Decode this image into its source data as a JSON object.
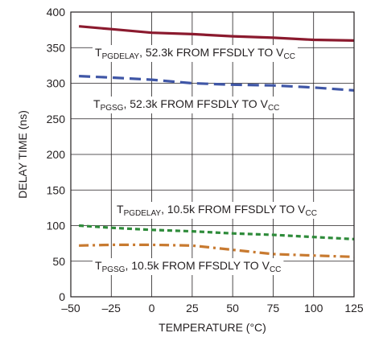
{
  "chart_data": {
    "type": "line",
    "title": "",
    "xlabel": "TEMPERATURE (°C)",
    "ylabel": "DELAY TIME (ns)",
    "xlim": [
      -50,
      125
    ],
    "ylim": [
      0,
      400
    ],
    "grid": true,
    "x_ticks": [
      -50,
      -25,
      0,
      25,
      50,
      75,
      100,
      125
    ],
    "x_tick_labels": [
      "–50",
      "–25",
      "0",
      "25",
      "50",
      "75",
      "100",
      "125"
    ],
    "y_ticks": [
      0,
      50,
      100,
      150,
      200,
      250,
      300,
      350,
      400
    ],
    "y_tick_labels": [
      "0",
      "50",
      "100",
      "150",
      "200",
      "250",
      "300",
      "350",
      "400"
    ],
    "series": [
      {
        "annotation": {
          "main": "T",
          "sub": "PGDELAY",
          "rest": ", 52.3k FROM FFSDLY TO V",
          "sub2": "CC"
        },
        "color": "#8b1a2e",
        "dash": "solid",
        "x": [
          -45,
          -25,
          0,
          25,
          50,
          75,
          100,
          125
        ],
        "y": [
          380,
          376,
          371,
          369,
          366,
          364,
          361,
          360
        ]
      },
      {
        "annotation": {
          "main": "T",
          "sub": "PGSG",
          "rest": ", 52.3k FROM FFSDLY TO V",
          "sub2": "CC"
        },
        "color": "#3f56a6",
        "dash": "long-dash",
        "x": [
          -45,
          -25,
          0,
          25,
          50,
          75,
          100,
          125
        ],
        "y": [
          310,
          308,
          305,
          300,
          298,
          297,
          294,
          290
        ]
      },
      {
        "annotation": {
          "main": "T",
          "sub": "PGDELAY",
          "rest": ", 10.5k FROM FFSDLY TO V",
          "sub2": "CC"
        },
        "color": "#2e8b3a",
        "dash": "short-dash",
        "x": [
          -45,
          -25,
          0,
          25,
          50,
          75,
          100,
          125
        ],
        "y": [
          100,
          97,
          94,
          92,
          89,
          87,
          84,
          81
        ]
      },
      {
        "annotation": {
          "main": "T",
          "sub": "PGSG",
          "rest": ", 10.5k FROM FFSDLY TO V",
          "sub2": "CC"
        },
        "color": "#c87a30",
        "dash": "dash-dot",
        "x": [
          -45,
          -25,
          0,
          25,
          50,
          75,
          100,
          125
        ],
        "y": [
          72,
          73,
          73,
          72,
          66,
          60,
          58,
          56
        ]
      }
    ]
  }
}
